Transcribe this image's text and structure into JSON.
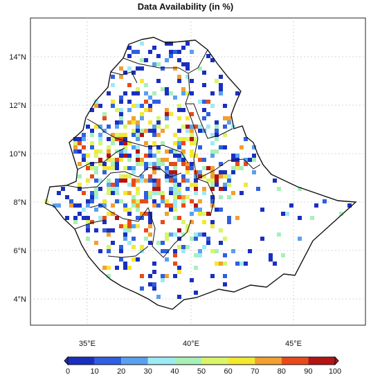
{
  "title": "Data Availability (in %)",
  "latitude_ticks": [
    "14°N",
    "12°N",
    "10°N",
    "8°N",
    "6°N",
    "4°N"
  ],
  "longitude_ticks": [
    "35°E",
    "40°E",
    "45°E"
  ],
  "colorbar": {
    "labels": [
      "0",
      "10",
      "20",
      "30",
      "40",
      "50",
      "60",
      "70",
      "80",
      "90",
      "100"
    ],
    "colors": [
      "#1a2fbf",
      "#2f5fe0",
      "#5aa0ef",
      "#9cebf4",
      "#a8f0b8",
      "#d9f56a",
      "#f4e830",
      "#f2a030",
      "#e84a1a",
      "#b41414"
    ]
  },
  "map": {
    "region": "Ethiopia",
    "lon_range": [
      32.5,
      48.5
    ],
    "lat_range": [
      3.0,
      15.2
    ],
    "grid": true
  }
}
